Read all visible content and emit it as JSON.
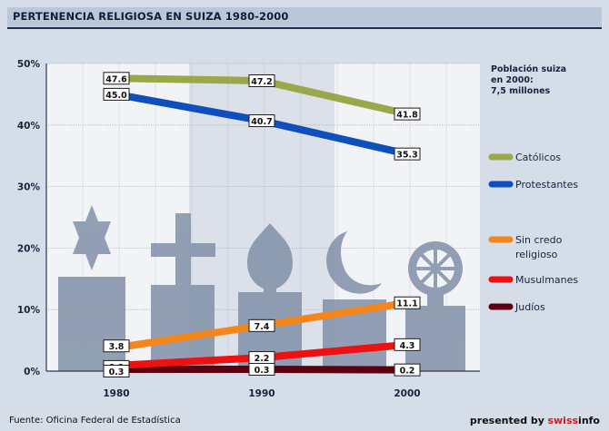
{
  "header": {
    "title": "PERTENENCIA RELIGIOSA EN SUIZA 1980-2000"
  },
  "footer": {
    "source": "Fuente: Oficina Federal de Estadística",
    "presented_prefix": "presented by",
    "brand_a": "swiss",
    "brand_b": "info"
  },
  "colors": {
    "catolicos": "#9aa84a",
    "protestantes": "#0f4fbd",
    "sin_credo": "#f4861b",
    "musulmanes": "#ee1111",
    "judios": "#5c0010",
    "tombstone": "#8190a8"
  },
  "chart_data": {
    "type": "line",
    "title": "PERTENENCIA RELIGIOSA EN SUIZA 1980-2000",
    "x": [
      "1980",
      "1990",
      "2000"
    ],
    "ylim": [
      0,
      50
    ],
    "yticks": [
      "0%",
      "10%",
      "20%",
      "30%",
      "40%",
      "50%"
    ],
    "yticks_values": [
      0,
      10,
      20,
      30,
      40,
      50
    ],
    "grid": true,
    "legend_position": "right",
    "note": "Población suiza en 2000: 7,5 millones",
    "note_lines": [
      "Población suiza",
      "en 2000:",
      "7,5 millones"
    ],
    "series": [
      {
        "key": "catolicos",
        "name": "Católicos",
        "values": [
          47.6,
          47.2,
          41.8
        ],
        "labels": [
          "47.6",
          "47.2",
          "41.8"
        ]
      },
      {
        "key": "protestantes",
        "name": "Protestantes",
        "values": [
          45.0,
          40.7,
          35.3
        ],
        "labels": [
          "45.0",
          "40.7",
          "35.3"
        ]
      },
      {
        "key": "sin_credo",
        "name": "Sin credo religioso",
        "legend_lines": [
          "Sin credo",
          "religioso"
        ],
        "values": [
          3.8,
          7.4,
          11.1
        ],
        "labels": [
          "3.8",
          "7.4",
          "11.1"
        ]
      },
      {
        "key": "musulmanes",
        "name": "Musulmanes",
        "values": [
          0.9,
          2.2,
          4.3
        ],
        "labels": [
          "0.9",
          "2.2",
          "4.3"
        ]
      },
      {
        "key": "judios",
        "name": "Judíos",
        "values": [
          0.3,
          0.3,
          0.2
        ],
        "labels": [
          "0.3",
          "0.3",
          "0.2"
        ]
      }
    ]
  }
}
